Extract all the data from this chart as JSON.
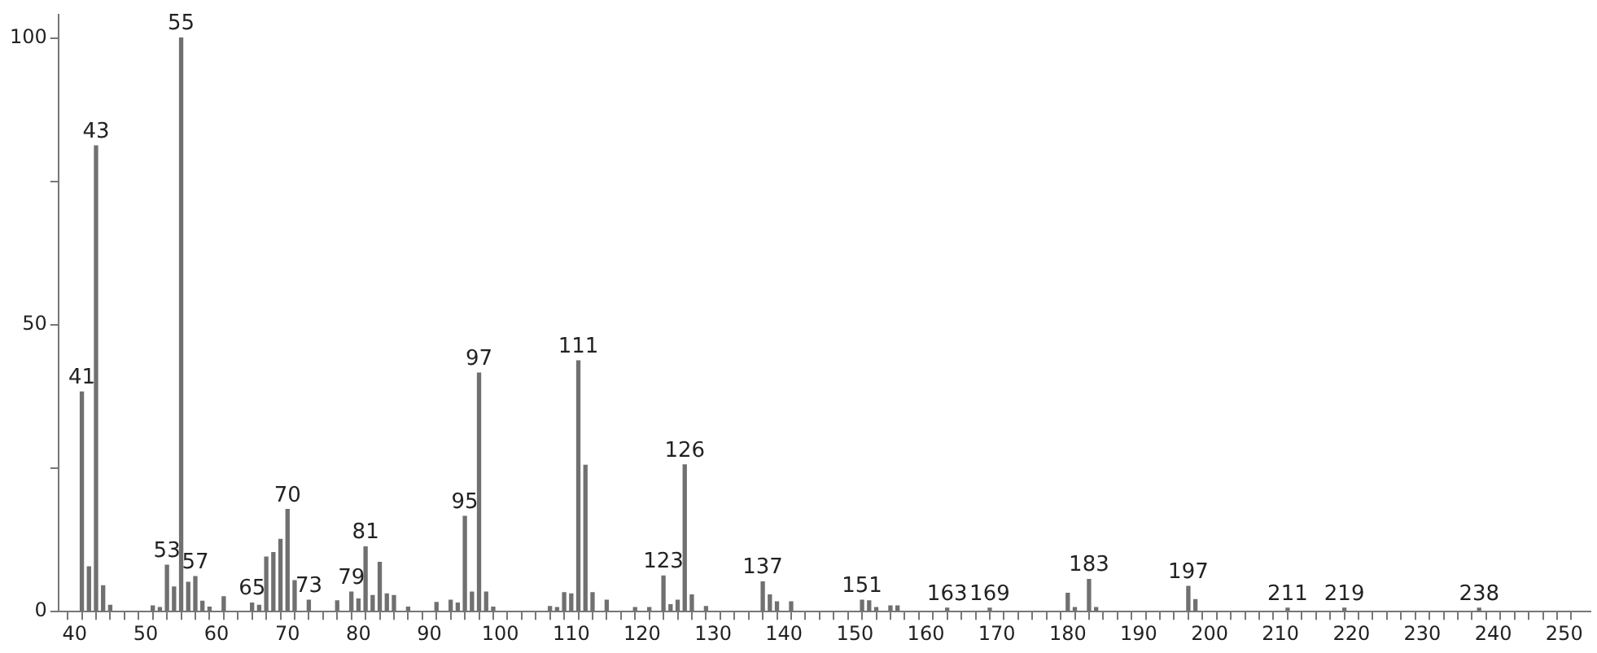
{
  "chart_data": {
    "type": "bar",
    "x": [
      41,
      42,
      43,
      44,
      45,
      51,
      52,
      53,
      54,
      55,
      56,
      57,
      58,
      59,
      61,
      65,
      66,
      67,
      68,
      69,
      70,
      71,
      73,
      77,
      79,
      80,
      81,
      82,
      83,
      84,
      85,
      87,
      91,
      93,
      94,
      95,
      96,
      97,
      98,
      99,
      107,
      108,
      109,
      110,
      111,
      112,
      113,
      115,
      119,
      121,
      123,
      124,
      125,
      126,
      127,
      129,
      137,
      138,
      139,
      141,
      151,
      152,
      153,
      155,
      156,
      163,
      169,
      180,
      181,
      183,
      184,
      197,
      198,
      211,
      219,
      238
    ],
    "values": [
      38.3,
      7.8,
      81.2,
      4.5,
      1.1,
      1,
      0.7,
      8.1,
      4.3,
      100,
      5.1,
      6.1,
      1.8,
      0.8,
      2.6,
      1.5,
      1.1,
      9.5,
      10.3,
      12.6,
      17.8,
      5.4,
      2,
      1.9,
      3.4,
      2.2,
      11.3,
      2.8,
      8.6,
      3.1,
      2.8,
      0.8,
      1.6,
      2,
      1.5,
      16.6,
      3.4,
      41.6,
      3.4,
      0.8,
      0.9,
      0.7,
      3.3,
      3.1,
      43.7,
      25.5,
      3.3,
      2,
      0.7,
      0.7,
      6.2,
      1.2,
      2,
      25.6,
      2.9,
      0.9,
      5.2,
      2.9,
      1.7,
      1.7,
      2,
      1.9,
      0.7,
      1,
      1,
      0.6,
      0.6,
      3.2,
      0.7,
      5.6,
      0.7,
      4.4,
      2.1,
      0.6,
      0.6,
      0.6
    ],
    "color": "#707070",
    "annotations": [
      {
        "text": "41",
        "x": 41,
        "y": 38.3
      },
      {
        "text": "43",
        "x": 43,
        "y": 81.2
      },
      {
        "text": "53",
        "x": 53,
        "y": 8.1
      },
      {
        "text": "55",
        "x": 55,
        "y": 100
      },
      {
        "text": "57",
        "x": 57,
        "y": 6.1
      },
      {
        "text": "65",
        "x": 65,
        "y": 1.5
      },
      {
        "text": "70",
        "x": 70,
        "y": 17.8
      },
      {
        "text": "73",
        "x": 73,
        "y": 2
      },
      {
        "text": "79",
        "x": 79,
        "y": 3.4
      },
      {
        "text": "81",
        "x": 81,
        "y": 11.3
      },
      {
        "text": "95",
        "x": 95,
        "y": 16.6
      },
      {
        "text": "97",
        "x": 97,
        "y": 41.6
      },
      {
        "text": "111",
        "x": 111,
        "y": 43.7
      },
      {
        "text": "123",
        "x": 123,
        "y": 6.2
      },
      {
        "text": "126",
        "x": 126,
        "y": 25.6
      },
      {
        "text": "137",
        "x": 137,
        "y": 5.2
      },
      {
        "text": "151",
        "x": 151,
        "y": 2
      },
      {
        "text": "163",
        "x": 163,
        "y": 0.6
      },
      {
        "text": "169",
        "x": 169,
        "y": 0.6
      },
      {
        "text": "183",
        "x": 183,
        "y": 5.6
      },
      {
        "text": "197",
        "x": 197,
        "y": 4.4
      },
      {
        "text": "211",
        "x": 211,
        "y": 0.6
      },
      {
        "text": "219",
        "x": 219,
        "y": 0.6
      },
      {
        "text": "238",
        "x": 238,
        "y": 0.6
      }
    ],
    "xlim": [
      37.7,
      253.7
    ],
    "xticks": [
      40,
      {
        "value": 42,
        "label": null
      },
      {
        "value": 44,
        "label": null
      },
      {
        "value": 46,
        "label": null
      },
      {
        "value": 48,
        "label": null
      },
      50,
      {
        "value": 52,
        "label": null
      },
      {
        "value": 54,
        "label": null
      },
      {
        "value": 56,
        "label": null
      },
      {
        "value": 58,
        "label": null
      },
      60,
      {
        "value": 62,
        "label": null
      },
      {
        "value": 64,
        "label": null
      },
      {
        "value": 66,
        "label": null
      },
      {
        "value": 68,
        "label": null
      },
      70,
      {
        "value": 72,
        "label": null
      },
      {
        "value": 74,
        "label": null
      },
      {
        "value": 76,
        "label": null
      },
      {
        "value": 78,
        "label": null
      },
      80,
      {
        "value": 82,
        "label": null
      },
      {
        "value": 84,
        "label": null
      },
      {
        "value": 86,
        "label": null
      },
      {
        "value": 88,
        "label": null
      },
      90,
      {
        "value": 92,
        "label": null
      },
      {
        "value": 94,
        "label": null
      },
      {
        "value": 96,
        "label": null
      },
      {
        "value": 98,
        "label": null
      },
      100,
      {
        "value": 102,
        "label": null
      },
      {
        "value": 104,
        "label": null
      },
      {
        "value": 106,
        "label": null
      },
      {
        "value": 108,
        "label": null
      },
      110,
      {
        "value": 112,
        "label": null
      },
      {
        "value": 114,
        "label": null
      },
      {
        "value": 116,
        "label": null
      },
      {
        "value": 118,
        "label": null
      },
      120,
      {
        "value": 122,
        "label": null
      },
      {
        "value": 124,
        "label": null
      },
      {
        "value": 126,
        "label": null
      },
      {
        "value": 128,
        "label": null
      },
      130,
      {
        "value": 132,
        "label": null
      },
      {
        "value": 134,
        "label": null
      },
      {
        "value": 136,
        "label": null
      },
      {
        "value": 138,
        "label": null
      },
      140,
      {
        "value": 142,
        "label": null
      },
      {
        "value": 144,
        "label": null
      },
      {
        "value": 146,
        "label": null
      },
      {
        "value": 148,
        "label": null
      },
      150,
      {
        "value": 152,
        "label": null
      },
      {
        "value": 154,
        "label": null
      },
      {
        "value": 156,
        "label": null
      },
      {
        "value": 158,
        "label": null
      },
      160,
      {
        "value": 162,
        "label": null
      },
      {
        "value": 164,
        "label": null
      },
      {
        "value": 166,
        "label": null
      },
      {
        "value": 168,
        "label": null
      },
      170,
      {
        "value": 172,
        "label": null
      },
      {
        "value": 174,
        "label": null
      },
      {
        "value": 176,
        "label": null
      },
      {
        "value": 178,
        "label": null
      },
      180,
      {
        "value": 182,
        "label": null
      },
      {
        "value": 184,
        "label": null
      },
      {
        "value": 186,
        "label": null
      },
      {
        "value": 188,
        "label": null
      },
      190,
      {
        "value": 192,
        "label": null
      },
      {
        "value": 194,
        "label": null
      },
      {
        "value": 196,
        "label": null
      },
      {
        "value": 198,
        "label": null
      },
      200,
      {
        "value": 202,
        "label": null
      },
      {
        "value": 204,
        "label": null
      },
      {
        "value": 206,
        "label": null
      },
      {
        "value": 208,
        "label": null
      },
      210,
      {
        "value": 212,
        "label": null
      },
      {
        "value": 214,
        "label": null
      },
      {
        "value": 216,
        "label": null
      },
      {
        "value": 218,
        "label": null
      },
      220,
      {
        "value": 222,
        "label": null
      },
      {
        "value": 224,
        "label": null
      },
      {
        "value": 226,
        "label": null
      },
      {
        "value": 228,
        "label": null
      },
      230,
      {
        "value": 232,
        "label": null
      },
      {
        "value": 234,
        "label": null
      },
      {
        "value": 236,
        "label": null
      },
      {
        "value": 238,
        "label": null
      },
      240,
      {
        "value": 242,
        "label": null
      },
      {
        "value": 244,
        "label": null
      },
      {
        "value": 246,
        "label": null
      },
      {
        "value": 248,
        "label": null
      },
      250
    ],
    "ylim": [
      0,
      104
    ],
    "yticks": [
      0,
      {
        "value": 25,
        "label": null
      },
      50,
      {
        "value": 75,
        "label": null
      },
      100
    ],
    "grid": false,
    "legend": false
  }
}
